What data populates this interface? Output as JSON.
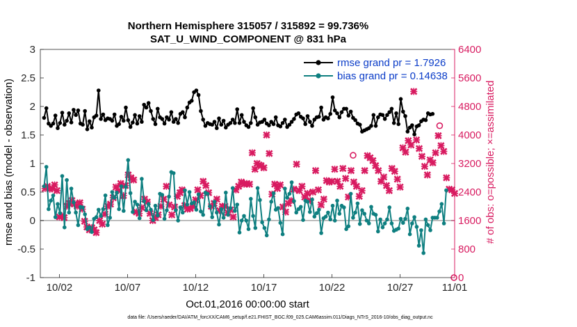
{
  "chart_data": {
    "type": "line",
    "title": [
      "Northern Hemisphere 315057 / 315892 = 99.736%",
      "SAT_U_WIND_COMPONENT @ 831 hPa"
    ],
    "xlabel": "Oct.01,2016 00:00:00 start",
    "ylabel_left": "rmse and bias (model - observation)",
    "ylabel_right": "# of obs: o=possible; ×=assimilated",
    "footnote": "data file: /Users/raeder/DAI/ATM_forcXX/CAM6_setup/f.e21.FHIST_BGC.f09_025.CAM6assim.011/Diags_NTrS_2016-10/obs_diag_output.nc",
    "x_range": [
      0.6,
      31.0
    ],
    "x_ticks": [
      {
        "x": 2,
        "label": "10/02"
      },
      {
        "x": 7,
        "label": "10/07"
      },
      {
        "x": 12,
        "label": "10/12"
      },
      {
        "x": 17,
        "label": "10/17"
      },
      {
        "x": 22,
        "label": "10/22"
      },
      {
        "x": 27,
        "label": "10/27"
      },
      {
        "x": 32,
        "label": "11/01"
      }
    ],
    "ylim_left": [
      -1,
      3
    ],
    "y_ticks_left": [
      "-1",
      "-0.5",
      "0",
      "0.5",
      "1",
      "1.5",
      "2",
      "2.5",
      "3"
    ],
    "ylim_right": [
      0,
      6400
    ],
    "y_ticks_right": [
      "0",
      "800",
      "1600",
      "2400",
      "3200",
      "4000",
      "4800",
      "5600",
      "6400"
    ],
    "zero_line": true,
    "legend_position": "top-right",
    "colors": {
      "rmse": "#000000",
      "bias": "#0e7f80",
      "obs": "#d81b60",
      "right_axis": "#d81b60",
      "legend_text": "#0a3cc8"
    },
    "series": [
      {
        "name": "rmse grand pr = 1.7926",
        "axis": "left",
        "marker": "circle",
        "values": [
          1.8,
          1.97,
          1.7,
          1.66,
          1.7,
          1.84,
          1.62,
          1.71,
          1.89,
          1.68,
          1.75,
          1.88,
          1.72,
          1.94,
          1.85,
          1.93,
          1.7,
          1.68,
          1.92,
          1.6,
          1.74,
          1.63,
          1.81,
          1.84,
          2.28,
          1.78,
          1.86,
          1.76,
          1.79,
          1.78,
          1.75,
          1.86,
          1.66,
          1.69,
          1.82,
          1.75,
          1.98,
          1.76,
          1.64,
          1.72,
          1.85,
          1.7,
          1.83,
          1.73,
          2.03,
          1.98,
          2.06,
          1.92,
          1.78,
          1.69,
          1.96,
          1.81,
          1.78,
          1.7,
          1.81,
          1.77,
          1.9,
          1.73,
          1.78,
          1.71,
          1.87,
          1.9,
          1.81,
          1.98,
          2.07,
          2.1,
          2.25,
          2.28,
          2.2,
          1.92,
          1.77,
          1.66,
          1.71,
          1.69,
          1.68,
          1.73,
          1.62,
          1.79,
          1.68,
          1.75,
          1.63,
          1.68,
          1.71,
          1.77,
          1.71,
          1.95,
          1.71,
          1.85,
          1.73,
          1.67,
          1.64,
          1.71,
          1.97,
          1.81,
          1.68,
          1.72,
          1.73,
          1.77,
          1.7,
          1.67,
          1.73,
          1.69,
          1.81,
          1.67,
          1.65,
          1.71,
          1.77,
          1.64,
          1.68,
          1.73,
          1.78,
          1.86,
          1.88,
          1.82,
          1.79,
          1.69,
          1.83,
          1.73,
          1.66,
          1.77,
          1.81,
          1.82,
          1.98,
          1.77,
          1.81,
          1.79,
          1.87,
          2.16,
          1.93,
          1.88,
          1.81,
          1.9,
          1.96,
          1.96,
          1.84,
          1.91,
          1.8,
          1.76,
          1.7,
          1.68,
          1.56,
          1.58,
          1.6,
          1.62,
          1.66,
          1.85,
          1.66,
          1.81,
          1.86,
          1.85,
          1.78,
          1.85,
          1.9,
          1.96,
          1.71,
          1.88,
          1.69,
          2.13,
          1.91,
          1.83,
          1.56,
          1.63,
          1.67,
          1.51,
          1.65,
          1.67,
          1.74,
          1.77,
          1.76,
          1.88,
          1.86,
          1.87
        ]
      },
      {
        "name": "bias grand pr = 0.14638",
        "axis": "left",
        "marker": "circle",
        "values": [
          0.6,
          0.94,
          0.2,
          0.35,
          0.44,
          0.06,
          0.29,
          0.13,
          0.78,
          -0.12,
          0.71,
          0.14,
          0.56,
          0.32,
          0.14,
          -0.08,
          0.24,
          0.23,
          0.11,
          -0.15,
          -0.12,
          -0.2,
          0.03,
          0.06,
          0.19,
          0.08,
          0.2,
          0.44,
          -0.08,
          0.05,
          0.5,
          0.4,
          0.49,
          0.2,
          0.6,
          0.17,
          0.59,
          1.06,
          0.48,
          0.15,
          0.33,
          0.28,
          0.04,
          0.73,
          0.34,
          0.18,
          0.29,
          0.19,
          0.01,
          0.26,
          0.09,
          0.47,
          0.45,
          0.03,
          0.18,
          0.42,
          0.85,
          0.83,
          0.18,
          0.0,
          0.23,
          0.14,
          0.53,
          0.28,
          0.5,
          0.3,
          0.32,
          0.19,
          0.46,
          0.16,
          0.1,
          0.49,
          0.47,
          0.25,
          0.06,
          0.33,
          0.14,
          -0.07,
          0.2,
          0.05,
          0.49,
          0.1,
          0.22,
          0.57,
          0.17,
          0.28,
          -0.21,
          0.0,
          0.08,
          0.0,
          -0.15,
          0.38,
          0.08,
          -0.13,
          0.57,
          0.36,
          -0.03,
          -0.13,
          -0.26,
          0.02,
          0.33,
          0.48,
          0.19,
          0.22,
          -0.04,
          -0.24,
          0.56,
          0.4,
          0.47,
          0.67,
          0.34,
          0.14,
          0.2,
          0.24,
          0.01,
          0.35,
          0.33,
          0.15,
          0.37,
          0.07,
          0.13,
          0.19,
          -0.22,
          0.04,
          0.07,
          0.14,
          0.02,
          0.26,
          0.0,
          0.35,
          0.12,
          0.26,
          0.23,
          -0.15,
          -0.1,
          0.47,
          0.05,
          0.14,
          0.3,
          -0.06,
          0.18,
          0.12,
          0.0,
          -0.05,
          0.24,
          0.12,
          0.1,
          -0.19,
          0.02,
          -0.12,
          -0.05,
          0.02,
          0.23,
          -0.05,
          -0.18,
          -0.16,
          -0.14,
          0.03,
          -0.04,
          0.03,
          0.21,
          -0.24,
          -0.05,
          0.06,
          -0.11,
          -0.44,
          -0.17,
          -0.57,
          0.02,
          -0.08,
          -0.17,
          0.05,
          0.05,
          0.05,
          0.16,
          0.29,
          -0.05,
          0.53
        ]
      },
      {
        "name": "obs assimilated",
        "axis": "right",
        "marker": "x",
        "points": [
          [
            0.95,
            2500
          ],
          [
            1.12,
            2560
          ],
          [
            1.3,
            2480
          ],
          [
            1.48,
            2500
          ],
          [
            1.65,
            2600
          ],
          [
            1.82,
            2440
          ],
          [
            2.0,
            1700
          ],
          [
            2.18,
            1740
          ],
          [
            2.35,
            1680
          ],
          [
            2.55,
            2000
          ],
          [
            2.72,
            2080
          ],
          [
            2.92,
            2160
          ],
          [
            3.1,
            2060
          ],
          [
            3.3,
            2000
          ],
          [
            3.5,
            2100
          ],
          [
            3.68,
            1920
          ],
          [
            3.85,
            1580
          ],
          [
            4.02,
            1420
          ],
          [
            4.2,
            1340
          ],
          [
            4.38,
            1400
          ],
          [
            4.55,
            1340
          ],
          [
            4.7,
            1260
          ],
          [
            4.95,
            1600
          ],
          [
            5.15,
            1500
          ],
          [
            5.35,
            1780
          ],
          [
            5.55,
            2000
          ],
          [
            5.75,
            2060
          ],
          [
            5.95,
            2240
          ],
          [
            6.15,
            2540
          ],
          [
            6.32,
            2440
          ],
          [
            6.5,
            2640
          ],
          [
            6.7,
            2300
          ],
          [
            6.85,
            2580
          ],
          [
            7.05,
            2880
          ],
          [
            7.25,
            2800
          ],
          [
            7.45,
            2740
          ],
          [
            7.65,
            1840
          ],
          [
            7.85,
            1800
          ],
          [
            8.05,
            1960
          ],
          [
            8.25,
            2200
          ],
          [
            8.45,
            2120
          ],
          [
            8.65,
            1800
          ],
          [
            8.85,
            1600
          ],
          [
            9.05,
            1680
          ],
          [
            9.25,
            1760
          ],
          [
            9.45,
            2000
          ],
          [
            9.65,
            2200
          ],
          [
            9.85,
            2560
          ],
          [
            10.05,
            2040
          ],
          [
            10.25,
            1760
          ],
          [
            10.45,
            1980
          ],
          [
            10.65,
            2280
          ],
          [
            10.85,
            2380
          ],
          [
            11.0,
            2460
          ],
          [
            11.2,
            2020
          ],
          [
            11.4,
            1920
          ],
          [
            11.6,
            1940
          ],
          [
            11.8,
            2000
          ],
          [
            12.0,
            2180
          ],
          [
            12.15,
            2460
          ],
          [
            12.35,
            2300
          ],
          [
            12.55,
            2700
          ],
          [
            12.75,
            2580
          ],
          [
            12.95,
            2380
          ],
          [
            13.15,
            2000
          ],
          [
            13.35,
            2080
          ],
          [
            13.55,
            2200
          ],
          [
            13.75,
            1880
          ],
          [
            13.95,
            2000
          ],
          [
            14.15,
            2000
          ],
          [
            14.35,
            1820
          ],
          [
            14.55,
            1900
          ],
          [
            14.75,
            1700
          ],
          [
            14.95,
            2460
          ],
          [
            15.15,
            2560
          ],
          [
            15.35,
            2680
          ],
          [
            15.55,
            2620
          ],
          [
            15.75,
            2640
          ],
          [
            15.95,
            2620
          ],
          [
            16.15,
            3500
          ],
          [
            16.35,
            3040
          ],
          [
            16.5,
            3200
          ],
          [
            16.65,
            3160
          ],
          [
            16.8,
            3140
          ],
          [
            17.0,
            3080
          ],
          [
            17.2,
            4000
          ],
          [
            17.4,
            3480
          ],
          [
            17.6,
            2340
          ],
          [
            17.8,
            2620
          ],
          [
            18.0,
            2500
          ],
          [
            18.2,
            2600
          ],
          [
            18.4,
            1980
          ],
          [
            18.6,
            1840
          ],
          [
            18.8,
            2080
          ],
          [
            19.0,
            2160
          ],
          [
            19.2,
            2480
          ],
          [
            19.4,
            3180
          ],
          [
            19.6,
            2440
          ],
          [
            19.8,
            2560
          ],
          [
            20.0,
            2260
          ],
          [
            20.2,
            2360
          ],
          [
            20.4,
            2160
          ],
          [
            20.6,
            2400
          ],
          [
            20.8,
            3000
          ],
          [
            21.0,
            2460
          ],
          [
            21.2,
            2040
          ],
          [
            21.4,
            2200
          ],
          [
            21.6,
            2720
          ],
          [
            21.8,
            2680
          ],
          [
            22.0,
            2700
          ],
          [
            22.2,
            3040
          ],
          [
            22.4,
            2700
          ],
          [
            22.6,
            2560
          ],
          [
            22.8,
            3060
          ],
          [
            23.0,
            2780
          ],
          [
            23.2,
            2260
          ],
          [
            23.4,
            3000
          ],
          [
            23.6,
            2680
          ],
          [
            23.8,
            2560
          ],
          [
            24.0,
            2280
          ],
          [
            24.2,
            2440
          ],
          [
            24.4,
            3000
          ],
          [
            24.6,
            3420
          ],
          [
            24.8,
            3360
          ],
          [
            25.0,
            3280
          ],
          [
            25.2,
            3140
          ],
          [
            25.4,
            3000
          ],
          [
            25.6,
            2700
          ],
          [
            25.8,
            2820
          ],
          [
            26.0,
            2580
          ],
          [
            26.2,
            2440
          ],
          [
            26.4,
            3060
          ],
          [
            26.6,
            2980
          ],
          [
            26.8,
            2760
          ],
          [
            27.0,
            2540
          ],
          [
            27.2,
            3640
          ],
          [
            27.4,
            3520
          ],
          [
            27.6,
            3840
          ],
          [
            27.8,
            3720
          ],
          [
            28.0,
            5220
          ],
          [
            28.2,
            3860
          ],
          [
            28.4,
            3620
          ],
          [
            28.6,
            3400
          ],
          [
            28.8,
            3120
          ],
          [
            29.0,
            2880
          ],
          [
            29.2,
            3300
          ],
          [
            29.4,
            3220
          ],
          [
            29.6,
            3500
          ],
          [
            29.8,
            3980
          ],
          [
            30.0,
            3700
          ],
          [
            30.2,
            3540
          ],
          [
            30.4,
            2800
          ],
          [
            30.6,
            2480
          ],
          [
            30.8,
            2460
          ],
          [
            31.0,
            2360
          ]
        ]
      },
      {
        "name": "obs possible",
        "axis": "right",
        "marker": "circle-open",
        "points": [
          [
            23.55,
            3430
          ],
          [
            29.9,
            4260
          ],
          [
            30.95,
            0
          ]
        ]
      }
    ]
  }
}
